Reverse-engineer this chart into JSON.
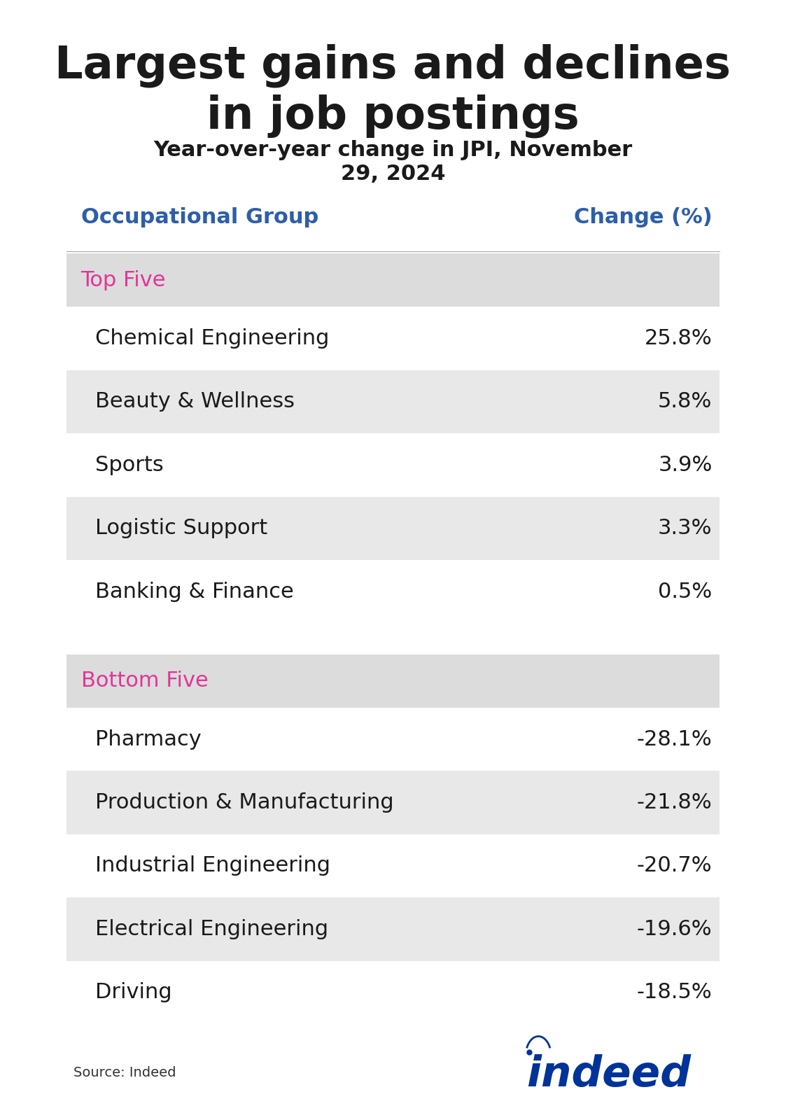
{
  "title": "Largest gains and declines\nin job postings",
  "subtitle": "Year-over-year change in JPI, November\n29, 2024",
  "col_header_left": "Occupational Group",
  "col_header_right": "Change (%)",
  "section1_label": "Top Five",
  "section2_label": "Bottom Five",
  "top_five": [
    {
      "name": "Chemical Engineering",
      "value": "25.8%"
    },
    {
      "name": "Beauty & Wellness",
      "value": "5.8%"
    },
    {
      "name": "Sports",
      "value": "3.9%"
    },
    {
      "name": "Logistic Support",
      "value": "3.3%"
    },
    {
      "name": "Banking & Finance",
      "value": "0.5%"
    }
  ],
  "bottom_five": [
    {
      "name": "Pharmacy",
      "value": "-28.1%"
    },
    {
      "name": "Production & Manufacturing",
      "value": "-21.8%"
    },
    {
      "name": "Industrial Engineering",
      "value": "-20.7%"
    },
    {
      "name": "Electrical Engineering",
      "value": "-19.6%"
    },
    {
      "name": "Driving",
      "value": "-18.5%"
    }
  ],
  "source_text": "Source: Indeed",
  "header_color": "#2E5EA8",
  "section_label_color": "#E0369A",
  "row_bg_even": "#E8E8E8",
  "row_bg_odd": "#FFFFFF",
  "section_header_bg": "#DCDCDC",
  "text_color": "#1A1A1A",
  "title_color": "#1A1A1A",
  "indeed_color": "#003399",
  "background_color": "#FFFFFF"
}
